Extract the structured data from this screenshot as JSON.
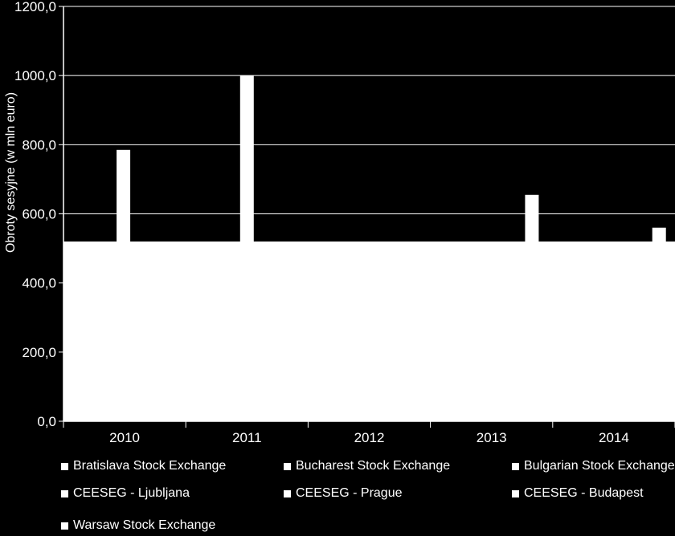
{
  "chart_data": {
    "type": "bar",
    "title": "",
    "xlabel": "",
    "ylabel": "Obroty sesyjne (w mln euro)",
    "ylim": [
      0,
      1200
    ],
    "yticks": [
      "0,0",
      "200,0",
      "400,0",
      "600,0",
      "800,0",
      "1000,0",
      "1200,0"
    ],
    "categories": [
      "2010",
      "2011",
      "2012",
      "2013",
      "2014"
    ],
    "series": [
      {
        "name": "Bratislava Stock Exchange",
        "values": [
          null,
          null,
          null,
          null,
          null
        ]
      },
      {
        "name": "Bucharest Stock Exchange",
        "values": [
          null,
          null,
          null,
          null,
          null
        ]
      },
      {
        "name": "Bulgarian Stock Exchange",
        "values": [
          null,
          null,
          null,
          null,
          null
        ]
      },
      {
        "name": "CEESEG - Ljubljana",
        "values": [
          null,
          null,
          null,
          null,
          null
        ]
      },
      {
        "name": "CEESEG - Prague",
        "values": [
          null,
          null,
          null,
          null,
          null
        ]
      },
      {
        "name": "CEESEG - Budapest",
        "values": [
          null,
          null,
          null,
          null,
          null
        ]
      },
      {
        "name": "Warsaw Stock Exchange",
        "values": [
          785,
          1000,
          null,
          655,
          560
        ]
      }
    ],
    "visible_floor_value": 520,
    "bar_color": "#ffffff",
    "background_color": "#000000",
    "grid": true,
    "legend_position": "bottom"
  }
}
